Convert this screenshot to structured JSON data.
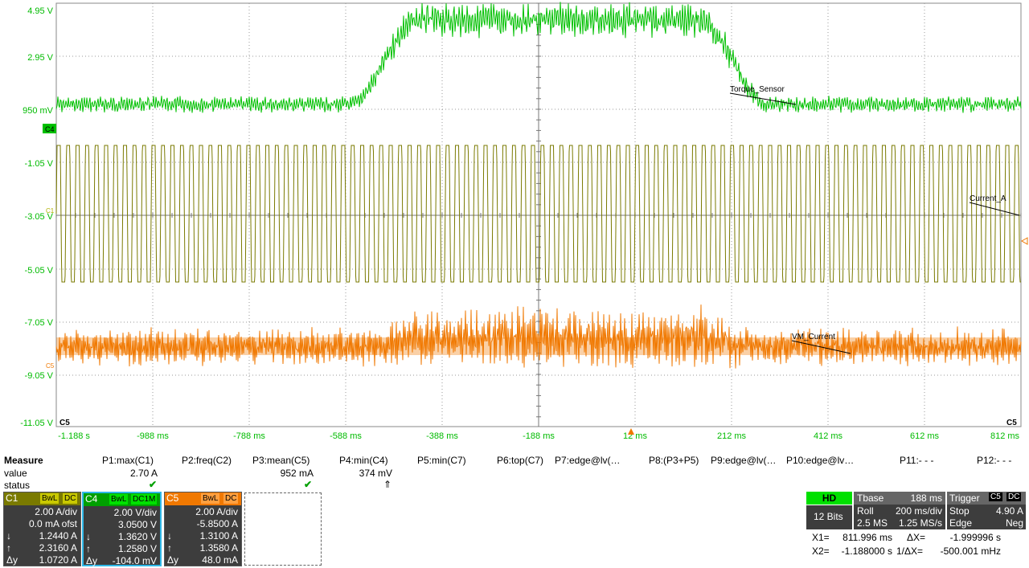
{
  "y_axis_labels": [
    "4.95 V",
    "2.95 V",
    "950 mV",
    "-1.05 V",
    "-3.05 V",
    "-5.05 V",
    "-7.05 V",
    "-9.05 V",
    "-11.05 V"
  ],
  "x_axis_labels": [
    "-1.188 s",
    "-988 ms",
    "-788 ms",
    "-588 ms",
    "-388 ms",
    "-188 ms",
    "12 ms",
    "212 ms",
    "412 ms",
    "612 ms",
    "812 ms"
  ],
  "colors": {
    "c1": "#7a7a00",
    "c4": "#00c000",
    "c5": "#f07800",
    "axis_text": "#00bb00",
    "grid": "#9a9a9a",
    "panel": "#3d3d3d",
    "highlight": "#2fb8e8"
  },
  "channel_markers": {
    "c4": "C4",
    "c1": "C1",
    "c5": "C5"
  },
  "corner_labels": {
    "left": "C5",
    "right": "C5"
  },
  "trace_labels": {
    "torque": "Torque_Sensor",
    "current_a": "Current_A",
    "vm_current": "VM_Current"
  },
  "measure": {
    "title": "Measure",
    "row_value": "value",
    "row_status": "status",
    "cols": [
      {
        "name": "P1:max(C1)",
        "value": "2.70 A",
        "status": "✔"
      },
      {
        "name": "P2:freq(C2)",
        "value": "",
        "status": ""
      },
      {
        "name": "P3:mean(C5)",
        "value": "952 mA",
        "status": "✔"
      },
      {
        "name": "P4:min(C4)",
        "value": "374 mV",
        "status": "⇑"
      },
      {
        "name": "P5:min(C7)",
        "value": "",
        "status": ""
      },
      {
        "name": "P6:top(C7)",
        "value": "",
        "status": ""
      },
      {
        "name": "P7:edge@lv(…",
        "value": "",
        "status": ""
      },
      {
        "name": "P8:(P3+P5)",
        "value": "",
        "status": ""
      },
      {
        "name": "P9:edge@lv(…",
        "value": "",
        "status": ""
      },
      {
        "name": "P10:edge@lv…",
        "value": "",
        "status": ""
      },
      {
        "name": "P11:- - -",
        "value": "",
        "status": ""
      },
      {
        "name": "P12:- - -",
        "value": "",
        "status": ""
      }
    ]
  },
  "channels": [
    {
      "name": "C1",
      "tag1": "BwL",
      "tag2": "DC",
      "div": "2.00 A/div",
      "ofst": "0.0 mA ofst",
      "down": "1.2440 A",
      "up": "2.3160 A",
      "dy": "1.0720 A",
      "dy_label": "Δy"
    },
    {
      "name": "C4",
      "tag1": "BwL",
      "tag2": "DC1M",
      "div": "2.00 V/div",
      "ofst": "3.0500 V",
      "down": "1.3620 V",
      "up": "1.2580 V",
      "dy": "-104.0 mV",
      "dy_label": "Δy"
    },
    {
      "name": "C5",
      "tag1": "BwL",
      "tag2": "DC",
      "div": "2.00 A/div",
      "ofst": "-5.8500 A",
      "down": "1.3100 A",
      "up": "1.3580 A",
      "dy": "48.0 mA",
      "dy_label": "Δy"
    }
  ],
  "arrows": {
    "down": "↓",
    "up": "↑"
  },
  "timebase": {
    "hd": "HD",
    "bits": "12 Bits",
    "tbase_label": "Tbase",
    "tbase_value": "188 ms",
    "mode": "Roll",
    "div": "200 ms/div",
    "samples": "2.5 MS",
    "rate": "1.25 MS/s",
    "trigger_label": "Trigger",
    "trigger_ch": "C5",
    "trigger_cpl": "DC",
    "trig_mode": "Stop",
    "trig_level": "4.90 A",
    "trig_type": "Edge",
    "trig_slope": "Neg"
  },
  "cursors": {
    "x1_label": "X1=",
    "x1": "811.996 ms",
    "dx_label": "ΔX=",
    "dx": "-1.999996 s",
    "x2_label": "X2=",
    "x2": "-1.188000 s",
    "inv_dx_label": "1/ΔX=",
    "inv_dx": "-500.001 mHz"
  }
}
